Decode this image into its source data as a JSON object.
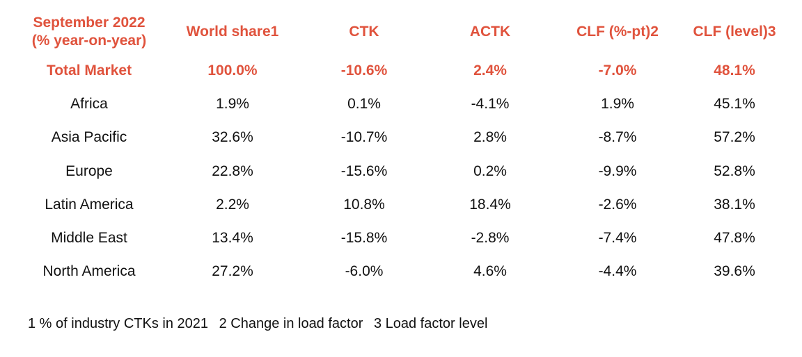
{
  "table": {
    "header": {
      "period_line1": "September 2022",
      "period_line2": "(% year-on-year)",
      "columns": [
        "World share1",
        "CTK",
        "ACTK",
        "CLF (%-pt)2",
        "CLF (level)3"
      ]
    },
    "total": {
      "label": "Total Market",
      "values": [
        "100.0%",
        "-10.6%",
        "2.4%",
        "-7.0%",
        "48.1%"
      ]
    },
    "rows": [
      {
        "label": "Africa",
        "values": [
          "1.9%",
          "0.1%",
          "-4.1%",
          "1.9%",
          "45.1%"
        ]
      },
      {
        "label": "Asia Pacific",
        "values": [
          "32.6%",
          "-10.7%",
          "2.8%",
          "-8.7%",
          "57.2%"
        ]
      },
      {
        "label": "Europe",
        "values": [
          "22.8%",
          "-15.6%",
          "0.2%",
          "-9.9%",
          "52.8%"
        ]
      },
      {
        "label": "Latin America",
        "values": [
          "2.2%",
          "10.8%",
          "18.4%",
          "-2.6%",
          "38.1%"
        ]
      },
      {
        "label": "Middle East",
        "values": [
          "13.4%",
          "-15.8%",
          "-2.8%",
          "-7.4%",
          "47.8%"
        ]
      },
      {
        "label": "North America",
        "values": [
          "27.2%",
          "-6.0%",
          "4.6%",
          "-4.4%",
          "39.6%"
        ]
      }
    ]
  },
  "footnotes": [
    "1 % of industry CTKs in 2021",
    "2 Change in load factor",
    "3 Load factor level"
  ],
  "colors": {
    "accent": "#e0533d",
    "text": "#111111",
    "background": "#ffffff"
  }
}
